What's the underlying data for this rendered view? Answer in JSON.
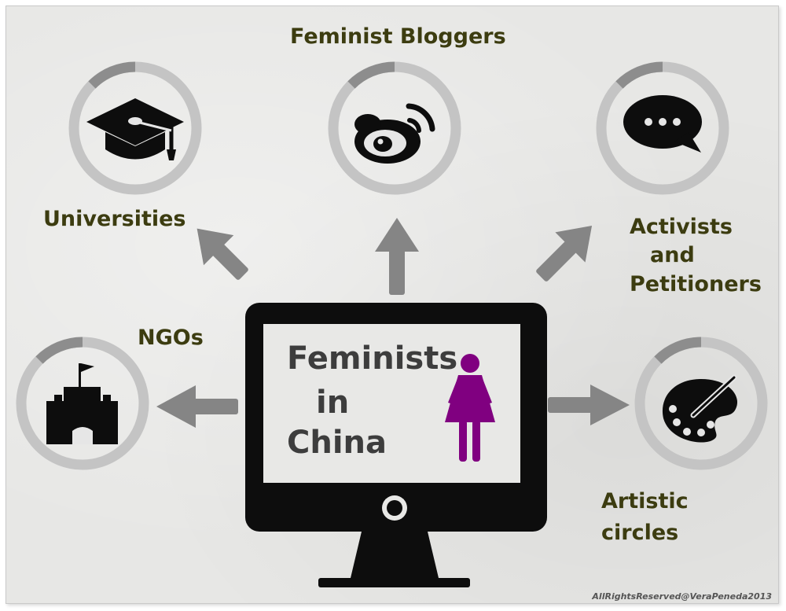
{
  "center": {
    "title_lines": [
      "Feminists",
      "in",
      "China"
    ]
  },
  "nodes": {
    "universities": {
      "label": "Universities",
      "icon": "graduation-cap-icon"
    },
    "bloggers": {
      "label": "Feminist Bloggers",
      "icon": "weibo-icon"
    },
    "activists": {
      "label_lines": [
        "Activists",
        "and",
        "Petitioners"
      ],
      "icon": "speech-bubble-icon"
    },
    "ngos": {
      "label": "NGOs",
      "icon": "building-flag-icon"
    },
    "artistic": {
      "label_lines": [
        "Artistic",
        "circles"
      ],
      "icon": "palette-icon"
    }
  },
  "credit": "AllRightsReserved@VeraPeneda2013",
  "colors": {
    "label_text": "#3c3c10",
    "center_text": "#3d3d3d",
    "ring_light": "#c4c4c4",
    "ring_dark": "#8d8d8d",
    "arrow": "#858585",
    "monitor": "#0d0d0d",
    "woman_figure": "#800080"
  }
}
